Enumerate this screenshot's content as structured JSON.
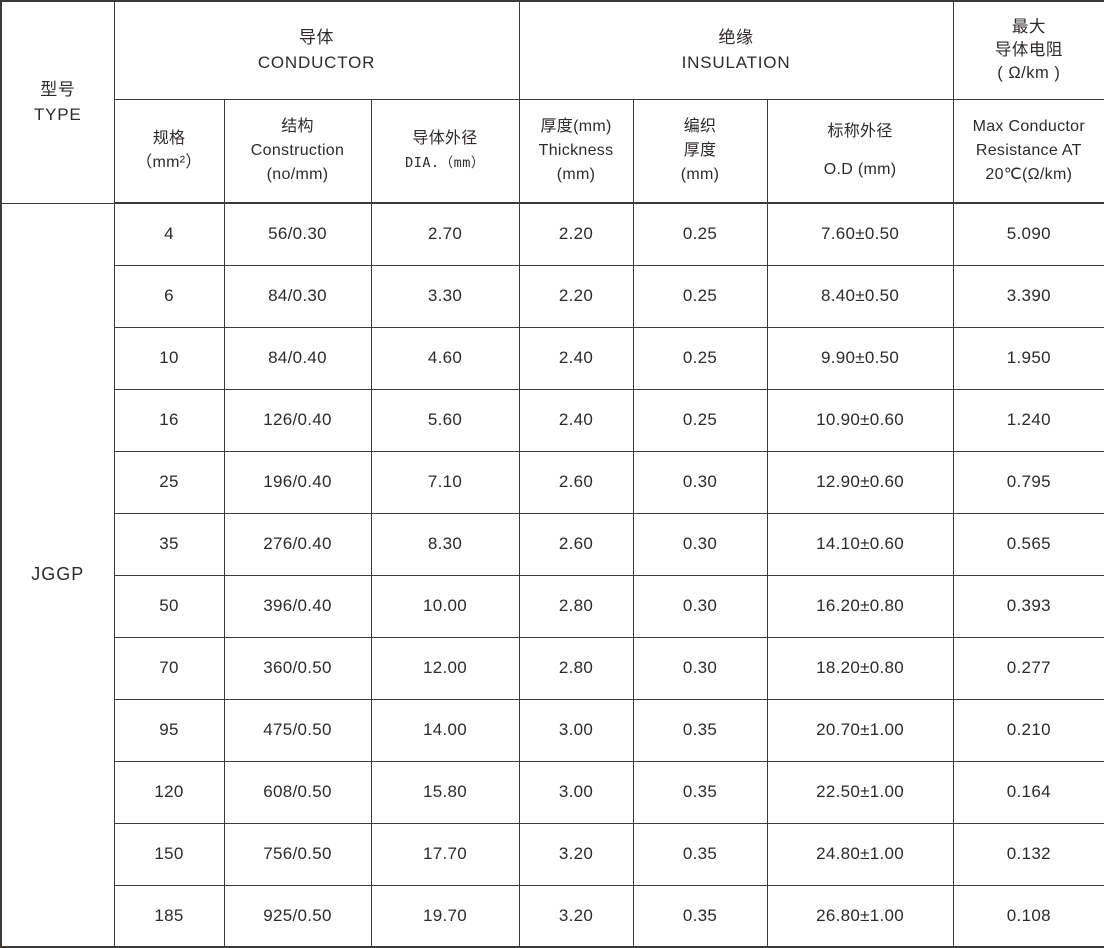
{
  "colors": {
    "column_shade_blue": "#e8f3fa",
    "border_gray": "#3d3a3a",
    "text_dark": "#2e2a2a",
    "background": "#ffffff"
  },
  "header": {
    "type": {
      "zh": "型号",
      "en": "TYPE"
    },
    "conductor": {
      "zh": "导体",
      "en": "CONDUCTOR"
    },
    "insulation": {
      "zh": "绝缘",
      "en": "INSULATION"
    },
    "max_resistance_group": {
      "lines": [
        "最大",
        "导体电阻",
        "( Ω/km )"
      ]
    }
  },
  "sub_headers": [
    {
      "name": "spec",
      "lines": [
        "规格",
        "（mm²）"
      ]
    },
    {
      "name": "construction",
      "lines": [
        "结构",
        "Construction",
        "(no/mm)"
      ]
    },
    {
      "name": "dia",
      "lines": [
        "导体外径",
        "DIA.（mm）"
      ],
      "mono": [
        1
      ]
    },
    {
      "name": "thickness",
      "lines": [
        "厚度(mm)",
        "Thickness",
        "(mm)"
      ]
    },
    {
      "name": "braid-thickness",
      "lines": [
        "编织",
        "厚度",
        "(mm)"
      ]
    },
    {
      "name": "od",
      "lines": [
        "标称外径",
        "O.D (mm)"
      ]
    },
    {
      "name": "max-resistance",
      "lines": [
        "Max Conductor",
        "Resistance  AT",
        "20℃(Ω/km)"
      ]
    }
  ],
  "body": {
    "type_value": "JGGP",
    "rows": [
      [
        "4",
        "56/0.30",
        "2.70",
        "2.20",
        "0.25",
        "7.60±0.50",
        "5.090"
      ],
      [
        "6",
        "84/0.30",
        "3.30",
        "2.20",
        "0.25",
        "8.40±0.50",
        "3.390"
      ],
      [
        "10",
        "84/0.40",
        "4.60",
        "2.40",
        "0.25",
        "9.90±0.50",
        "1.950"
      ],
      [
        "16",
        "126/0.40",
        "5.60",
        "2.40",
        "0.25",
        "10.90±0.60",
        "1.240"
      ],
      [
        "25",
        "196/0.40",
        "7.10",
        "2.60",
        "0.30",
        "12.90±0.60",
        "0.795"
      ],
      [
        "35",
        "276/0.40",
        "8.30",
        "2.60",
        "0.30",
        "14.10±0.60",
        "0.565"
      ],
      [
        "50",
        "396/0.40",
        "10.00",
        "2.80",
        "0.30",
        "16.20±0.80",
        "0.393"
      ],
      [
        "70",
        "360/0.50",
        "12.00",
        "2.80",
        "0.30",
        "18.20±0.80",
        "0.277"
      ],
      [
        "95",
        "475/0.50",
        "14.00",
        "3.00",
        "0.35",
        "20.70±1.00",
        "0.210"
      ],
      [
        "120",
        "608/0.50",
        "15.80",
        "3.00",
        "0.35",
        "22.50±1.00",
        "0.164"
      ],
      [
        "150",
        "756/0.50",
        "17.70",
        "3.20",
        "0.35",
        "24.80±1.00",
        "0.132"
      ],
      [
        "185",
        "925/0.50",
        "19.70",
        "3.20",
        "0.35",
        "26.80±1.00",
        "0.108"
      ]
    ]
  }
}
